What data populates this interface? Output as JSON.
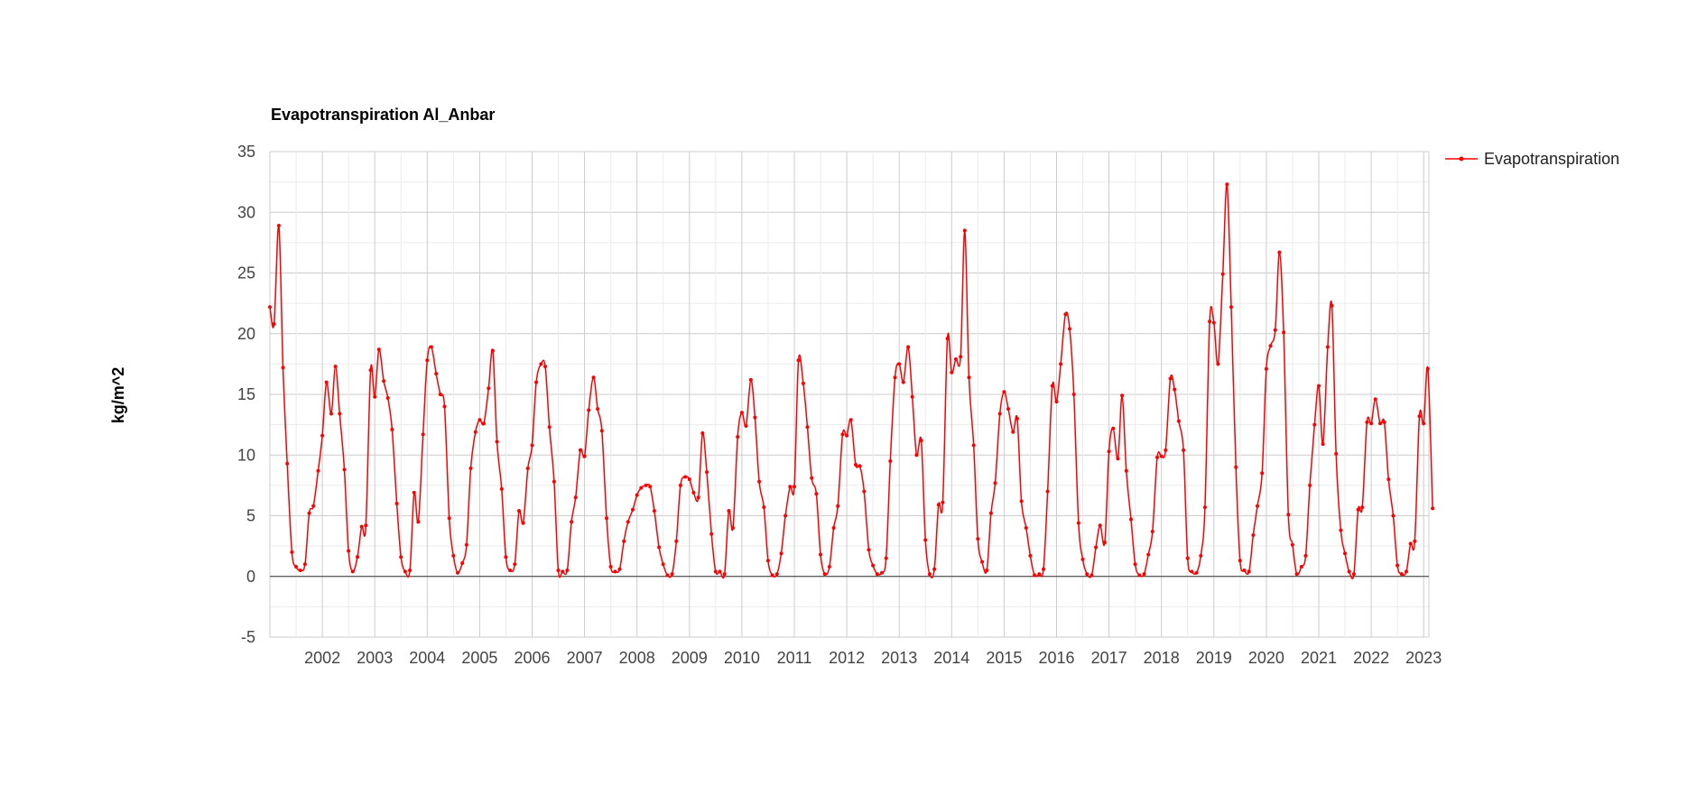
{
  "chart_data": {
    "type": "line",
    "title": "Evapotranspiration Al_Anbar",
    "ylabel": "kg/m^2",
    "xlabel": "",
    "ylim": [
      -5,
      35
    ],
    "xlim": [
      2001.0,
      2023.1
    ],
    "yticks": [
      35,
      30,
      25,
      20,
      15,
      10,
      5,
      0,
      -5
    ],
    "xticks": [
      "2002",
      "2003",
      "2004",
      "2005",
      "2006",
      "2007",
      "2008",
      "2009",
      "2010",
      "2011",
      "2012",
      "2013",
      "2014",
      "2015",
      "2016",
      "2017",
      "2018",
      "2019",
      "2020",
      "2021",
      "2022",
      "2023"
    ],
    "grid": true,
    "legend_position": "right",
    "series": [
      {
        "name": "Evapotranspiration",
        "color": "#ff0000",
        "points": [
          [
            2001.0,
            22.2
          ],
          [
            2001.08,
            20.8
          ],
          [
            2001.17,
            28.9
          ],
          [
            2001.25,
            17.2
          ],
          [
            2001.33,
            9.3
          ],
          [
            2001.42,
            2.0
          ],
          [
            2001.5,
            0.8
          ],
          [
            2001.58,
            0.5
          ],
          [
            2001.67,
            1.0
          ],
          [
            2001.75,
            5.2
          ],
          [
            2001.83,
            5.8
          ],
          [
            2001.92,
            8.7
          ],
          [
            2002.0,
            11.6
          ],
          [
            2002.08,
            16.0
          ],
          [
            2002.17,
            13.4
          ],
          [
            2002.25,
            17.3
          ],
          [
            2002.33,
            13.4
          ],
          [
            2002.42,
            8.8
          ],
          [
            2002.5,
            2.1
          ],
          [
            2002.58,
            0.4
          ],
          [
            2002.67,
            1.6
          ],
          [
            2002.75,
            4.1
          ],
          [
            2002.83,
            4.2
          ],
          [
            2002.92,
            17.0
          ],
          [
            2003.0,
            14.8
          ],
          [
            2003.08,
            18.7
          ],
          [
            2003.17,
            16.1
          ],
          [
            2003.25,
            14.7
          ],
          [
            2003.33,
            12.1
          ],
          [
            2003.42,
            6.0
          ],
          [
            2003.5,
            1.6
          ],
          [
            2003.58,
            0.4
          ],
          [
            2003.67,
            0.5
          ],
          [
            2003.75,
            6.9
          ],
          [
            2003.83,
            4.5
          ],
          [
            2003.92,
            11.7
          ],
          [
            2004.0,
            17.8
          ],
          [
            2004.08,
            18.9
          ],
          [
            2004.17,
            16.7
          ],
          [
            2004.25,
            15.0
          ],
          [
            2004.33,
            14.0
          ],
          [
            2004.42,
            4.8
          ],
          [
            2004.5,
            1.7
          ],
          [
            2004.58,
            0.3
          ],
          [
            2004.67,
            1.1
          ],
          [
            2004.75,
            2.6
          ],
          [
            2004.83,
            8.9
          ],
          [
            2004.92,
            11.9
          ],
          [
            2005.0,
            12.9
          ],
          [
            2005.08,
            12.6
          ],
          [
            2005.17,
            15.5
          ],
          [
            2005.25,
            18.6
          ],
          [
            2005.33,
            11.1
          ],
          [
            2005.42,
            7.2
          ],
          [
            2005.5,
            1.6
          ],
          [
            2005.58,
            0.5
          ],
          [
            2005.67,
            1.0
          ],
          [
            2005.75,
            5.4
          ],
          [
            2005.83,
            4.4
          ],
          [
            2005.92,
            8.9
          ],
          [
            2006.0,
            10.8
          ],
          [
            2006.08,
            16.0
          ],
          [
            2006.17,
            17.5
          ],
          [
            2006.25,
            17.3
          ],
          [
            2006.33,
            12.3
          ],
          [
            2006.42,
            7.8
          ],
          [
            2006.5,
            0.5
          ],
          [
            2006.58,
            0.4
          ],
          [
            2006.67,
            0.5
          ],
          [
            2006.75,
            4.5
          ],
          [
            2006.83,
            6.5
          ],
          [
            2006.92,
            10.4
          ],
          [
            2007.0,
            9.9
          ],
          [
            2007.08,
            13.7
          ],
          [
            2007.17,
            16.4
          ],
          [
            2007.25,
            13.8
          ],
          [
            2007.33,
            12.0
          ],
          [
            2007.42,
            4.8
          ],
          [
            2007.5,
            0.8
          ],
          [
            2007.58,
            0.4
          ],
          [
            2007.67,
            0.6
          ],
          [
            2007.75,
            2.9
          ],
          [
            2007.83,
            4.5
          ],
          [
            2007.92,
            5.5
          ],
          [
            2008.0,
            6.7
          ],
          [
            2008.08,
            7.3
          ],
          [
            2008.17,
            7.5
          ],
          [
            2008.25,
            7.4
          ],
          [
            2008.33,
            5.4
          ],
          [
            2008.42,
            2.4
          ],
          [
            2008.5,
            1.0
          ],
          [
            2008.58,
            0.1
          ],
          [
            2008.67,
            0.2
          ],
          [
            2008.75,
            2.9
          ],
          [
            2008.83,
            7.5
          ],
          [
            2008.92,
            8.2
          ],
          [
            2009.0,
            8.0
          ],
          [
            2009.08,
            6.9
          ],
          [
            2009.17,
            6.5
          ],
          [
            2009.25,
            11.8
          ],
          [
            2009.33,
            8.6
          ],
          [
            2009.42,
            3.5
          ],
          [
            2009.5,
            0.4
          ],
          [
            2009.58,
            0.4
          ],
          [
            2009.67,
            0.2
          ],
          [
            2009.75,
            5.4
          ],
          [
            2009.83,
            4.0
          ],
          [
            2009.92,
            11.5
          ],
          [
            2010.0,
            13.5
          ],
          [
            2010.08,
            12.4
          ],
          [
            2010.17,
            16.2
          ],
          [
            2010.25,
            13.1
          ],
          [
            2010.33,
            7.8
          ],
          [
            2010.42,
            5.7
          ],
          [
            2010.5,
            1.3
          ],
          [
            2010.58,
            0.1
          ],
          [
            2010.67,
            0.2
          ],
          [
            2010.75,
            1.9
          ],
          [
            2010.83,
            5.0
          ],
          [
            2010.92,
            7.4
          ],
          [
            2011.0,
            7.4
          ],
          [
            2011.08,
            17.8
          ],
          [
            2011.17,
            15.9
          ],
          [
            2011.25,
            12.3
          ],
          [
            2011.33,
            8.1
          ],
          [
            2011.42,
            6.8
          ],
          [
            2011.5,
            1.8
          ],
          [
            2011.58,
            0.2
          ],
          [
            2011.67,
            0.8
          ],
          [
            2011.75,
            4.0
          ],
          [
            2011.83,
            5.8
          ],
          [
            2011.92,
            11.7
          ],
          [
            2012.0,
            11.6
          ],
          [
            2012.08,
            12.9
          ],
          [
            2012.17,
            9.2
          ],
          [
            2012.25,
            9.1
          ],
          [
            2012.33,
            7.0
          ],
          [
            2012.42,
            2.2
          ],
          [
            2012.5,
            0.9
          ],
          [
            2012.58,
            0.2
          ],
          [
            2012.67,
            0.3
          ],
          [
            2012.75,
            1.5
          ],
          [
            2012.83,
            9.5
          ],
          [
            2012.92,
            16.4
          ],
          [
            2013.0,
            17.5
          ],
          [
            2013.08,
            16.0
          ],
          [
            2013.17,
            18.9
          ],
          [
            2013.25,
            14.8
          ],
          [
            2013.33,
            10.0
          ],
          [
            2013.42,
            11.2
          ],
          [
            2013.5,
            3.0
          ],
          [
            2013.58,
            0.2
          ],
          [
            2013.67,
            0.6
          ],
          [
            2013.75,
            5.9
          ],
          [
            2013.83,
            6.1
          ],
          [
            2013.92,
            19.6
          ],
          [
            2014.0,
            16.8
          ],
          [
            2014.08,
            17.9
          ],
          [
            2014.17,
            18.1
          ],
          [
            2014.25,
            28.5
          ],
          [
            2014.33,
            16.4
          ],
          [
            2014.42,
            10.8
          ],
          [
            2014.5,
            3.1
          ],
          [
            2014.58,
            1.2
          ],
          [
            2014.67,
            0.5
          ],
          [
            2014.75,
            5.2
          ],
          [
            2014.83,
            7.7
          ],
          [
            2014.92,
            13.4
          ],
          [
            2015.0,
            15.2
          ],
          [
            2015.08,
            13.8
          ],
          [
            2015.17,
            11.9
          ],
          [
            2015.25,
            13.0
          ],
          [
            2015.33,
            6.2
          ],
          [
            2015.42,
            4.0
          ],
          [
            2015.5,
            1.7
          ],
          [
            2015.58,
            0.1
          ],
          [
            2015.67,
            0.2
          ],
          [
            2015.75,
            0.6
          ],
          [
            2015.83,
            7.0
          ],
          [
            2015.92,
            15.7
          ],
          [
            2016.0,
            14.4
          ],
          [
            2016.08,
            17.5
          ],
          [
            2016.17,
            21.6
          ],
          [
            2016.25,
            20.4
          ],
          [
            2016.33,
            15.0
          ],
          [
            2016.42,
            4.4
          ],
          [
            2016.5,
            1.4
          ],
          [
            2016.58,
            0.2
          ],
          [
            2016.67,
            0.1
          ],
          [
            2016.75,
            2.4
          ],
          [
            2016.83,
            4.2
          ],
          [
            2016.92,
            2.8
          ],
          [
            2017.0,
            10.3
          ],
          [
            2017.08,
            12.2
          ],
          [
            2017.17,
            9.7
          ],
          [
            2017.25,
            14.9
          ],
          [
            2017.33,
            8.7
          ],
          [
            2017.42,
            4.7
          ],
          [
            2017.5,
            1.0
          ],
          [
            2017.58,
            0.1
          ],
          [
            2017.67,
            0.2
          ],
          [
            2017.75,
            1.8
          ],
          [
            2017.83,
            3.7
          ],
          [
            2017.92,
            9.8
          ],
          [
            2018.0,
            9.9
          ],
          [
            2018.08,
            10.4
          ],
          [
            2018.17,
            16.3
          ],
          [
            2018.25,
            15.4
          ],
          [
            2018.33,
            12.8
          ],
          [
            2018.42,
            10.4
          ],
          [
            2018.5,
            1.5
          ],
          [
            2018.58,
            0.4
          ],
          [
            2018.67,
            0.3
          ],
          [
            2018.75,
            1.7
          ],
          [
            2018.83,
            5.7
          ],
          [
            2018.92,
            21.0
          ],
          [
            2019.0,
            20.9
          ],
          [
            2019.08,
            17.5
          ],
          [
            2019.17,
            24.9
          ],
          [
            2019.25,
            32.3
          ],
          [
            2019.33,
            22.2
          ],
          [
            2019.42,
            9.0
          ],
          [
            2019.5,
            1.3
          ],
          [
            2019.58,
            0.5
          ],
          [
            2019.67,
            0.4
          ],
          [
            2019.75,
            3.4
          ],
          [
            2019.83,
            5.8
          ],
          [
            2019.92,
            8.5
          ],
          [
            2020.0,
            17.1
          ],
          [
            2020.08,
            19.0
          ],
          [
            2020.17,
            20.3
          ],
          [
            2020.25,
            26.7
          ],
          [
            2020.33,
            20.1
          ],
          [
            2020.42,
            5.1
          ],
          [
            2020.5,
            2.6
          ],
          [
            2020.58,
            0.2
          ],
          [
            2020.67,
            0.8
          ],
          [
            2020.75,
            1.7
          ],
          [
            2020.83,
            7.5
          ],
          [
            2020.92,
            12.5
          ],
          [
            2021.0,
            15.7
          ],
          [
            2021.08,
            10.9
          ],
          [
            2021.17,
            18.9
          ],
          [
            2021.25,
            22.3
          ],
          [
            2021.33,
            10.1
          ],
          [
            2021.42,
            3.8
          ],
          [
            2021.5,
            1.9
          ],
          [
            2021.58,
            0.4
          ],
          [
            2021.67,
            0.2
          ],
          [
            2021.75,
            5.5
          ],
          [
            2021.83,
            5.7
          ],
          [
            2021.92,
            12.7
          ],
          [
            2022.0,
            12.6
          ],
          [
            2022.08,
            14.6
          ],
          [
            2022.17,
            12.6
          ],
          [
            2022.25,
            12.7
          ],
          [
            2022.33,
            8.0
          ],
          [
            2022.42,
            5.0
          ],
          [
            2022.5,
            0.9
          ],
          [
            2022.58,
            0.2
          ],
          [
            2022.67,
            0.4
          ],
          [
            2022.75,
            2.7
          ],
          [
            2022.83,
            2.9
          ],
          [
            2022.92,
            13.2
          ],
          [
            2023.0,
            12.6
          ],
          [
            2023.08,
            17.1
          ],
          [
            2023.17,
            5.6
          ]
        ]
      }
    ]
  }
}
